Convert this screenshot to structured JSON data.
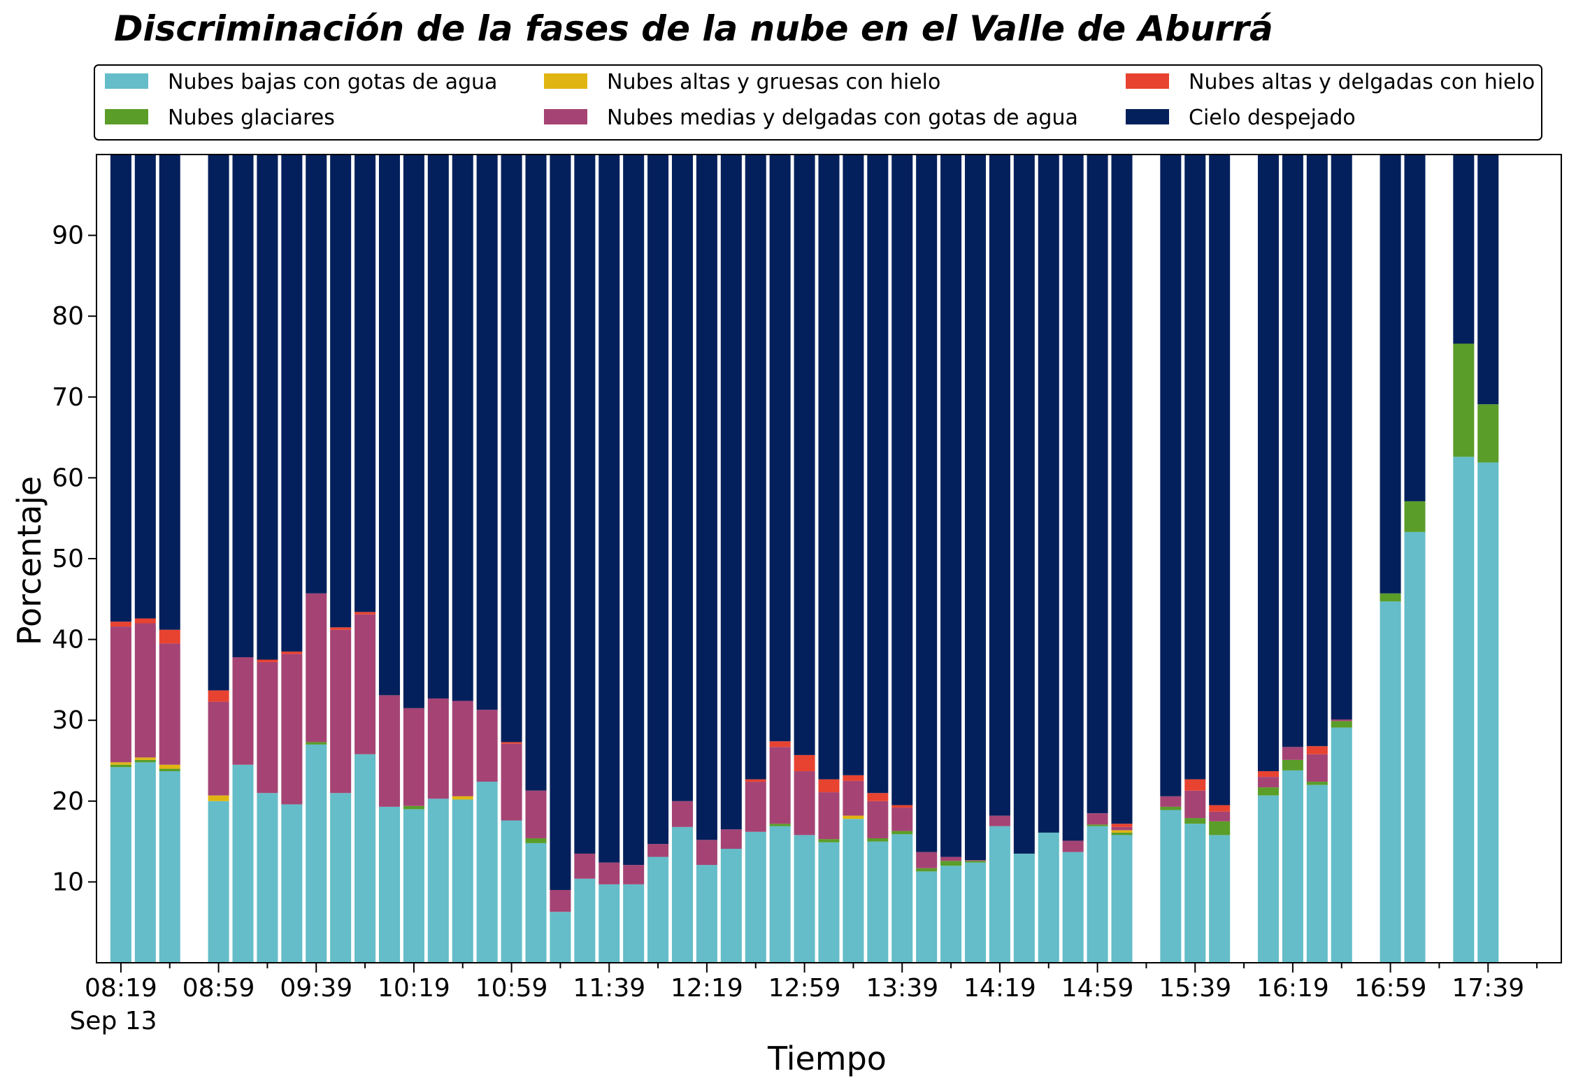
{
  "chart_data": {
    "type": "bar",
    "stacked": true,
    "title": "Discriminación de la fases de la nube en el Valle de Aburrá",
    "xlabel": "Tiempo",
    "ylabel": "Porcentaje",
    "ylim": [
      0,
      100
    ],
    "yticks": [
      10,
      20,
      30,
      40,
      50,
      60,
      70,
      80,
      90
    ],
    "xlim": [
      "08:09",
      "18:09"
    ],
    "xtick_times": [
      "08:19",
      "08:59",
      "09:39",
      "10:19",
      "10:59",
      "11:39",
      "12:19",
      "12:59",
      "13:39",
      "14:19",
      "14:59",
      "15:39",
      "16:19",
      "16:59",
      "17:39"
    ],
    "xtick_labels": [
      "08:19",
      "08:59",
      "09:39",
      "10:19",
      "10:59",
      "11:39",
      "12:19",
      "12:59",
      "13:39",
      "14:19",
      "14:59",
      "15:39",
      "16:19",
      "16:59",
      "17:39"
    ],
    "x_date_label": "Sep 13",
    "grid": false,
    "legend": {
      "placement": "top",
      "columns": 3
    },
    "times": [
      "08:19",
      "08:29",
      "08:39",
      "08:59",
      "09:09",
      "09:19",
      "09:29",
      "09:39",
      "09:49",
      "09:59",
      "10:09",
      "10:19",
      "10:29",
      "10:39",
      "10:49",
      "10:59",
      "11:09",
      "11:19",
      "11:29",
      "11:39",
      "11:49",
      "11:59",
      "12:09",
      "12:19",
      "12:29",
      "12:39",
      "12:49",
      "12:59",
      "13:09",
      "13:19",
      "13:29",
      "13:39",
      "13:49",
      "13:59",
      "14:09",
      "14:19",
      "14:29",
      "14:39",
      "14:49",
      "14:59",
      "15:09",
      "15:29",
      "15:39",
      "15:49",
      "16:09",
      "16:19",
      "16:29",
      "16:39",
      "16:59",
      "17:09",
      "17:29",
      "17:39"
    ],
    "series": [
      {
        "name": "Nubes bajas con gotas de agua",
        "color": "#64bdc8",
        "values": [
          24.2,
          24.8,
          23.7,
          20.0,
          24.5,
          21.0,
          19.6,
          27.0,
          21.0,
          25.8,
          19.3,
          19.0,
          20.3,
          20.2,
          22.4,
          17.6,
          14.8,
          6.3,
          10.4,
          9.7,
          9.7,
          13.1,
          16.8,
          12.1,
          14.1,
          16.2,
          16.9,
          15.8,
          14.9,
          17.8,
          15.0,
          15.9,
          11.3,
          12.0,
          12.4,
          16.9,
          13.5,
          16.1,
          13.7,
          16.9,
          15.8,
          18.9,
          17.2,
          15.8,
          20.7,
          23.8,
          22.0,
          29.1,
          44.7,
          53.3,
          62.6,
          61.9
        ]
      },
      {
        "name": "Nubes glaciares",
        "color": "#5a9d29",
        "values": [
          0.3,
          0.3,
          0.3,
          0,
          0,
          0,
          0,
          0.3,
          0,
          0,
          0,
          0.4,
          0,
          0,
          0,
          0,
          0.6,
          0,
          0,
          0,
          0,
          0,
          0,
          0,
          0,
          0,
          0.3,
          0,
          0.4,
          0,
          0.4,
          0.4,
          0.4,
          0.6,
          0.2,
          0,
          0,
          0,
          0,
          0.2,
          0.3,
          0.4,
          0.7,
          1.7,
          1.0,
          1.3,
          0.4,
          0.8,
          1.0,
          3.8,
          14.0,
          7.2
        ]
      },
      {
        "name": "Nubes altas y gruesas con hielo",
        "color": "#e0b511",
        "values": [
          0.3,
          0.3,
          0.5,
          0.7,
          0,
          0,
          0,
          0,
          0,
          0,
          0,
          0,
          0,
          0.4,
          0,
          0,
          0,
          0,
          0,
          0,
          0,
          0,
          0,
          0,
          0,
          0,
          0,
          0,
          0,
          0.4,
          0,
          0,
          0,
          0,
          0,
          0,
          0,
          0,
          0,
          0,
          0.3,
          0,
          0,
          0,
          0,
          0,
          0,
          0,
          0,
          0,
          0,
          0
        ]
      },
      {
        "name": "Nubes medias y delgadas con gotas de agua",
        "color": "#a54474",
        "values": [
          16.8,
          16.6,
          15.0,
          11.6,
          13.3,
          16.2,
          18.6,
          18.4,
          20.2,
          17.3,
          13.8,
          12.1,
          12.4,
          11.8,
          8.9,
          9.5,
          5.9,
          2.7,
          3.1,
          2.7,
          2.4,
          1.6,
          3.2,
          3.1,
          2.4,
          6.2,
          9.5,
          7.9,
          5.8,
          4.3,
          4.6,
          2.9,
          2.0,
          0.5,
          0.1,
          1.3,
          0,
          0,
          1.4,
          1.4,
          0.4,
          1.3,
          3.4,
          1.2,
          1.3,
          1.6,
          3.4,
          0.2,
          0,
          0,
          0,
          0
        ]
      },
      {
        "name": "Nubes altas y delgadas con hielo",
        "color": "#e84330",
        "values": [
          0.6,
          0.6,
          1.7,
          1.4,
          0,
          0.3,
          0.3,
          0,
          0.3,
          0.3,
          0,
          0,
          0,
          0,
          0,
          0.2,
          0,
          0,
          0,
          0,
          0,
          0,
          0,
          0,
          0,
          0.3,
          0.7,
          2.0,
          1.6,
          0.7,
          1.0,
          0.3,
          0,
          0,
          0,
          0,
          0,
          0,
          0,
          0,
          0.4,
          0,
          1.4,
          0.8,
          0.7,
          0,
          1.0,
          0,
          0,
          0,
          0,
          0
        ]
      },
      {
        "name": "Cielo despejado",
        "color": "#04205c",
        "values": [
          57.8,
          57.4,
          58.8,
          66.3,
          62.2,
          62.5,
          61.5,
          54.3,
          58.5,
          56.6,
          66.9,
          68.5,
          67.3,
          67.6,
          68.7,
          72.7,
          78.7,
          91.0,
          86.5,
          87.6,
          87.9,
          85.3,
          80.0,
          84.8,
          83.5,
          77.3,
          72.6,
          74.3,
          77.3,
          76.8,
          79.0,
          80.5,
          86.3,
          86.9,
          87.3,
          81.8,
          86.5,
          83.9,
          84.9,
          81.5,
          82.8,
          79.4,
          77.3,
          80.5,
          76.3,
          73.3,
          73.2,
          69.9,
          54.3,
          42.9,
          23.4,
          30.9
        ]
      }
    ]
  }
}
